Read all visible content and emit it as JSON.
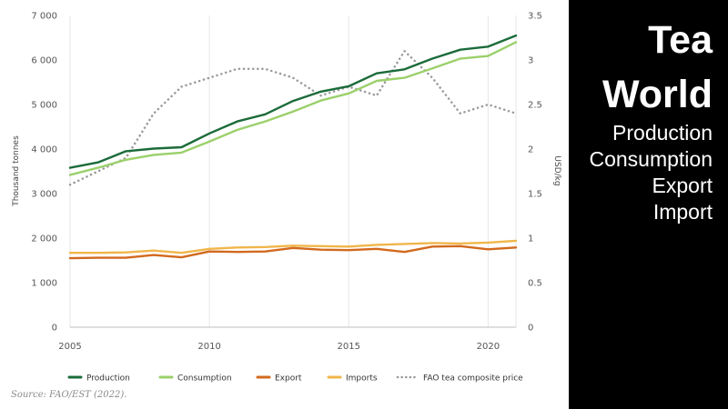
{
  "chart_data": {
    "type": "line",
    "xlabel": "",
    "ylabel": "Thousand tonnes",
    "y2label": "USD/kg",
    "xlim": [
      2005,
      2021
    ],
    "ylim": [
      0,
      7000
    ],
    "y2lim": [
      0,
      3.5
    ],
    "x_ticks": [
      "2005",
      "2010",
      "2015",
      "2020"
    ],
    "y_ticks": [
      "0",
      "1 000",
      "2 000",
      "3 000",
      "4 000",
      "5 000",
      "6 000",
      "7 000"
    ],
    "y2_ticks": [
      "0",
      "0.5",
      "1",
      "1.5",
      "2",
      "2.5",
      "3",
      "3.5"
    ],
    "grid": "vertical",
    "legend_position": "bottom",
    "x": [
      2005,
      2006,
      2007,
      2008,
      2009,
      2010,
      2011,
      2012,
      2013,
      2014,
      2015,
      2016,
      2017,
      2018,
      2019,
      2020,
      2021
    ],
    "series": [
      {
        "name": "Production",
        "axis": "left",
        "color": "#1b6b3a",
        "dashed": false,
        "values": [
          3580,
          3700,
          3950,
          4010,
          4040,
          4350,
          4620,
          4780,
          5080,
          5290,
          5410,
          5700,
          5790,
          6030,
          6230,
          6300,
          6550
        ]
      },
      {
        "name": "Consumption",
        "axis": "left",
        "color": "#9bd06b",
        "dashed": false,
        "values": [
          3420,
          3580,
          3760,
          3870,
          3920,
          4170,
          4430,
          4620,
          4840,
          5090,
          5250,
          5530,
          5600,
          5810,
          6030,
          6090,
          6400
        ]
      },
      {
        "name": "Export",
        "axis": "left",
        "color": "#d2691e",
        "dashed": false,
        "values": [
          1550,
          1560,
          1560,
          1620,
          1570,
          1700,
          1690,
          1700,
          1780,
          1740,
          1730,
          1760,
          1690,
          1810,
          1820,
          1750,
          1790
        ]
      },
      {
        "name": "Imports",
        "axis": "left",
        "color": "#f0b64a",
        "dashed": false,
        "values": [
          1670,
          1670,
          1680,
          1720,
          1670,
          1760,
          1790,
          1800,
          1830,
          1820,
          1810,
          1850,
          1870,
          1890,
          1880,
          1900,
          1940
        ]
      },
      {
        "name": "FAO tea composite price",
        "axis": "right",
        "color": "#999999",
        "dashed": true,
        "values": [
          1.6,
          1.75,
          1.9,
          2.4,
          2.7,
          2.8,
          2.9,
          2.9,
          2.8,
          2.6,
          2.7,
          2.6,
          3.1,
          2.8,
          2.4,
          2.5,
          2.4
        ]
      }
    ]
  },
  "source": "Source: FAO/EST (2022).",
  "panel": {
    "title_line1": "Tea",
    "title_line2": "World",
    "items": [
      "Production",
      "Consumption",
      "Export",
      "Import"
    ]
  }
}
